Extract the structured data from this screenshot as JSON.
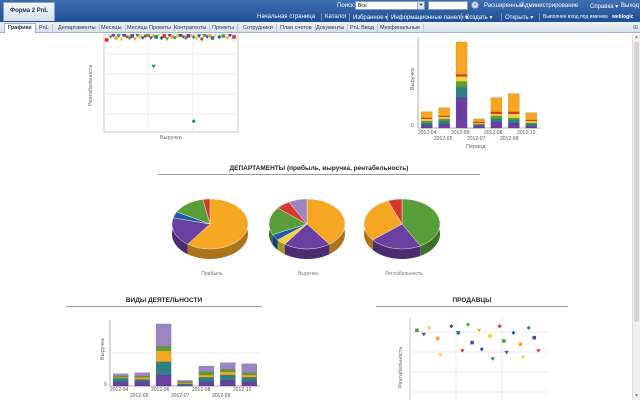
{
  "header": {
    "doc_title": "Форма 2 PnL",
    "search_label": "Поиск:",
    "search_scope": "Все",
    "top_links": [
      "Расширенный",
      "Администрирование",
      "Справка ▾",
      "Выход"
    ],
    "nav_links": [
      "Начальная страница",
      "Каталог",
      "Избранное ▾",
      "Информационные панели ▾",
      "Создать ▾",
      "Открыть ▾",
      "Выполнен вход под именем"
    ],
    "user": "weblogic"
  },
  "tabs": [
    "Графики",
    "PnL",
    "Департаменты",
    "Месяцы",
    "Месяцы Проекты",
    "Контрагенты",
    "Проекты",
    "Сотрудники",
    "План счетов",
    "Документы",
    "PnL Ввод",
    "Мехфинальные"
  ],
  "active_tab": 0,
  "colors": {
    "orange": "#f5a623",
    "purple": "#6b3fa0",
    "green": "#5a9e3a",
    "red": "#d8382b",
    "teal": "#2e7f86",
    "yellow": "#f2d33a",
    "blue": "#1f5aa6",
    "lavender": "#9a86c2"
  },
  "charts": {
    "scatter_top": {
      "ylabel": "Рентабельность",
      "xlabel": "Выручка"
    },
    "bar_top": {
      "ylabel": "Выручка",
      "xlabel": "Период",
      "ytick": "0",
      "xticks_top": [
        "2012-04",
        "2012-06",
        "2012-08",
        "2012-10"
      ],
      "xticks_bottom": [
        "2012-05",
        "2012-07",
        "2012-09"
      ]
    },
    "departments": {
      "title": "ДЕПАРТАМЕНТЫ (прибыль, выручка, рентабельность)",
      "pie_labels": [
        "Прибыль",
        "Выручка",
        "Рентабельность"
      ]
    },
    "activities": {
      "title": "ВИДЫ ДЕЯТЕЛЬНОСТИ",
      "ylabel": "Выручка",
      "ytick": "0",
      "xticks_top": [
        "2012-04",
        "2012-06",
        "2012-08",
        "2012-10"
      ],
      "xticks_bottom": [
        "2012-05",
        "2012-07",
        "2012-09"
      ]
    },
    "sellers": {
      "title": "ПРОДАВЦЫ",
      "ylabel": "Рентабельность"
    }
  },
  "chart_data": [
    {
      "type": "scatter",
      "name": "top-scatter",
      "points": [
        [
          0.02,
          0.94,
          "red"
        ],
        [
          0.05,
          0.97,
          "green"
        ],
        [
          0.07,
          0.99,
          "purple"
        ],
        [
          0.09,
          0.96,
          "orange"
        ],
        [
          0.11,
          0.98,
          "teal"
        ],
        [
          0.13,
          0.95,
          "yellow"
        ],
        [
          0.15,
          0.99,
          "blue"
        ],
        [
          0.17,
          0.97,
          "red"
        ],
        [
          0.19,
          0.96,
          "green"
        ],
        [
          0.21,
          0.98,
          "purple"
        ],
        [
          0.23,
          0.95,
          "orange"
        ],
        [
          0.25,
          0.99,
          "teal"
        ],
        [
          0.27,
          0.97,
          "yellow"
        ],
        [
          0.29,
          0.96,
          "blue"
        ],
        [
          0.31,
          0.98,
          "red"
        ],
        [
          0.33,
          0.99,
          "green"
        ],
        [
          0.35,
          0.96,
          "purple"
        ],
        [
          0.37,
          0.98,
          "orange"
        ],
        [
          0.39,
          0.97,
          "teal"
        ],
        [
          0.41,
          0.99,
          "yellow"
        ],
        [
          0.43,
          0.96,
          "blue"
        ],
        [
          0.45,
          0.98,
          "red"
        ],
        [
          0.47,
          0.95,
          "green"
        ],
        [
          0.49,
          0.99,
          "purple"
        ],
        [
          0.51,
          0.97,
          "orange"
        ],
        [
          0.53,
          0.96,
          "teal"
        ],
        [
          0.55,
          0.98,
          "yellow"
        ],
        [
          0.57,
          0.99,
          "blue"
        ],
        [
          0.59,
          0.97,
          "red"
        ],
        [
          0.61,
          0.96,
          "green"
        ],
        [
          0.63,
          0.98,
          "purple"
        ],
        [
          0.65,
          0.99,
          "orange"
        ],
        [
          0.67,
          0.97,
          "teal"
        ],
        [
          0.69,
          0.96,
          "yellow"
        ],
        [
          0.71,
          0.98,
          "blue"
        ],
        [
          0.73,
          0.95,
          "red"
        ],
        [
          0.75,
          0.99,
          "green"
        ],
        [
          0.77,
          0.97,
          "purple"
        ],
        [
          0.79,
          0.98,
          "orange"
        ],
        [
          0.81,
          0.96,
          "teal"
        ],
        [
          0.83,
          0.99,
          "yellow"
        ],
        [
          0.86,
          0.97,
          "blue"
        ],
        [
          0.89,
          0.98,
          "green"
        ],
        [
          0.92,
          0.96,
          "orange"
        ],
        [
          0.94,
          0.99,
          "purple"
        ],
        [
          0.97,
          0.97,
          "red"
        ],
        [
          0.37,
          0.67,
          "teal"
        ],
        [
          0.67,
          0.11,
          "teal"
        ]
      ]
    },
    {
      "type": "bar",
      "name": "top-bar",
      "stacked": true,
      "categories": [
        "2012-04",
        "2012-05",
        "2012-06",
        "2012-07",
        "2012-08",
        "2012-09",
        "2012-10"
      ],
      "series": [
        {
          "color": "purple",
          "values": [
            3,
            4,
            30,
            2,
            6,
            5,
            2
          ]
        },
        {
          "color": "teal",
          "values": [
            2,
            3,
            10,
            1,
            3,
            3,
            2
          ]
        },
        {
          "color": "green",
          "values": [
            2,
            2,
            6,
            1,
            3,
            2,
            1
          ]
        },
        {
          "color": "yellow",
          "values": [
            2,
            2,
            5,
            1,
            2,
            4,
            2
          ]
        },
        {
          "color": "red",
          "values": [
            1,
            1,
            2,
            1,
            2,
            2,
            1
          ]
        },
        {
          "color": "orange",
          "values": [
            6,
            8,
            32,
            3,
            14,
            18,
            7
          ]
        }
      ]
    },
    {
      "type": "pie",
      "name": "pie-profit",
      "slices": [
        {
          "color": "orange",
          "value": 60
        },
        {
          "color": "purple",
          "value": 19
        },
        {
          "color": "blue",
          "value": 4
        },
        {
          "color": "green",
          "value": 14
        },
        {
          "color": "red",
          "value": 3
        }
      ]
    },
    {
      "type": "pie",
      "name": "pie-revenue",
      "slices": [
        {
          "color": "orange",
          "value": 40
        },
        {
          "color": "purple",
          "value": 20
        },
        {
          "color": "yellow",
          "value": 4
        },
        {
          "color": "blue",
          "value": 4
        },
        {
          "color": "green",
          "value": 18
        },
        {
          "color": "red",
          "value": 6
        },
        {
          "color": "lavender",
          "value": 8
        }
      ]
    },
    {
      "type": "pie",
      "name": "pie-profitability",
      "slices": [
        {
          "color": "green",
          "value": 42
        },
        {
          "color": "purple",
          "value": 22
        },
        {
          "color": "orange",
          "value": 30
        },
        {
          "color": "red",
          "value": 6
        }
      ]
    },
    {
      "type": "bar",
      "name": "activities-bar",
      "stacked": true,
      "categories": [
        "2012-04",
        "2012-05",
        "2012-06",
        "2012-07",
        "2012-08",
        "2012-09",
        "2012-10"
      ],
      "series": [
        {
          "color": "purple",
          "values": [
            4,
            4,
            10,
            1,
            4,
            5,
            4
          ]
        },
        {
          "color": "teal",
          "values": [
            3,
            2,
            12,
            1,
            4,
            5,
            4
          ]
        },
        {
          "color": "orange",
          "values": [
            1,
            2,
            10,
            1,
            2,
            3,
            2
          ]
        },
        {
          "color": "green",
          "values": [
            1,
            1,
            4,
            1,
            3,
            2,
            2
          ]
        },
        {
          "color": "lavender",
          "values": [
            2,
            3,
            20,
            1,
            5,
            6,
            8
          ]
        }
      ]
    },
    {
      "type": "scatter",
      "name": "sellers-scatter",
      "points": [
        [
          0.05,
          0.85,
          "green"
        ],
        [
          0.1,
          0.8,
          "purple"
        ],
        [
          0.14,
          0.88,
          "yellow"
        ],
        [
          0.2,
          0.75,
          "orange"
        ],
        [
          0.22,
          0.55,
          "yellow"
        ],
        [
          0.3,
          0.9,
          "blue"
        ],
        [
          0.35,
          0.82,
          "teal"
        ],
        [
          0.38,
          0.6,
          "red"
        ],
        [
          0.42,
          0.92,
          "green"
        ],
        [
          0.45,
          0.7,
          "purple"
        ],
        [
          0.5,
          0.85,
          "orange"
        ],
        [
          0.52,
          0.62,
          "blue"
        ],
        [
          0.58,
          0.78,
          "yellow"
        ],
        [
          0.6,
          0.5,
          "teal"
        ],
        [
          0.65,
          0.9,
          "red"
        ],
        [
          0.68,
          0.72,
          "green"
        ],
        [
          0.7,
          0.58,
          "purple"
        ],
        [
          0.75,
          0.82,
          "blue"
        ],
        [
          0.8,
          0.68,
          "orange"
        ],
        [
          0.82,
          0.52,
          "yellow"
        ],
        [
          0.86,
          0.88,
          "teal"
        ],
        [
          0.9,
          0.76,
          "purple"
        ],
        [
          0.93,
          0.6,
          "red"
        ]
      ]
    }
  ]
}
